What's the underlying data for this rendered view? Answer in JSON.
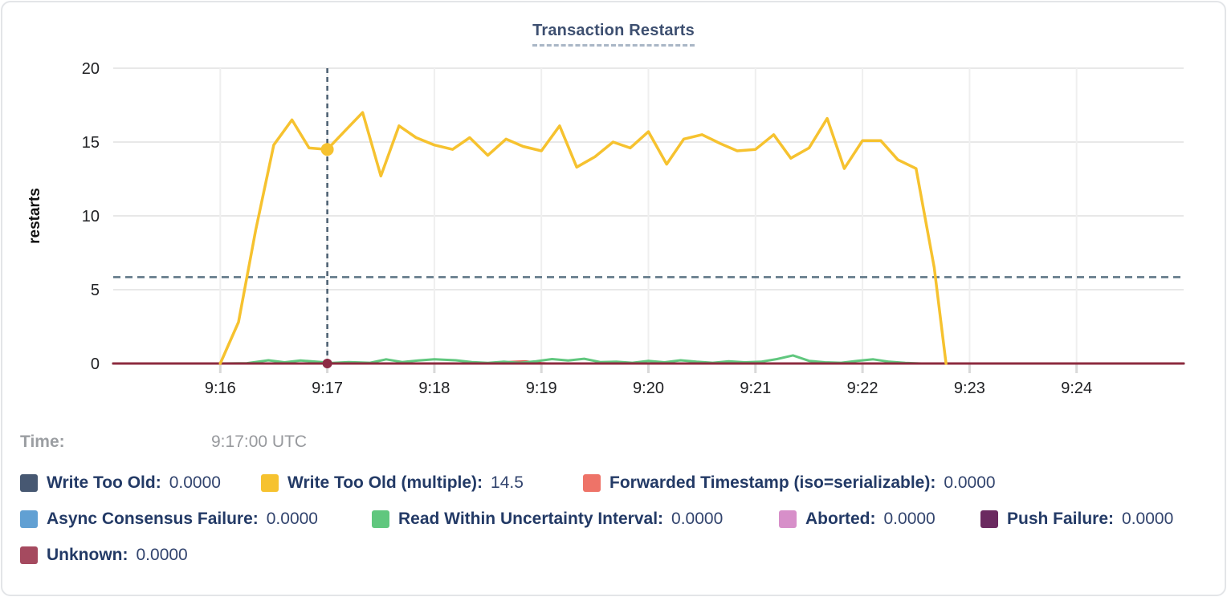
{
  "hover_readout": {
    "label": "Time:",
    "value": "9:17:00 UTC"
  },
  "chart_data": {
    "type": "line",
    "title": "Transaction Restarts",
    "ylabel": "restarts",
    "ylim": [
      0,
      20
    ],
    "yticks": [
      0,
      5,
      10,
      15,
      20
    ],
    "x_domain": [
      0,
      10
    ],
    "xticks": [
      {
        "m": 1,
        "label": "9:16"
      },
      {
        "m": 2,
        "label": "9:17"
      },
      {
        "m": 3,
        "label": "9:18"
      },
      {
        "m": 4,
        "label": "9:19"
      },
      {
        "m": 5,
        "label": "9:20"
      },
      {
        "m": 6,
        "label": "9:21"
      },
      {
        "m": 7,
        "label": "9:22"
      },
      {
        "m": 8,
        "label": "9:23"
      },
      {
        "m": 9,
        "label": "9:24"
      }
    ],
    "grid": true,
    "legend_position": "bottom",
    "dashed_hline_value": 5.85,
    "hover": {
      "x": 2,
      "time": "9:17:00 UTC",
      "points": [
        {
          "series": "Write Too Old (multiple)",
          "value": 14.5,
          "color": "#f6c22f",
          "r": 8
        },
        {
          "series": "Unknown",
          "value": 0,
          "color": "#8d2b44",
          "r": 6
        }
      ]
    },
    "z_order": [
      0,
      3,
      5,
      6,
      2,
      4,
      7,
      1
    ],
    "series": [
      {
        "name": "Write Too Old",
        "legend_value": "0.0000",
        "color": "#475872",
        "points": [
          [
            0,
            0
          ],
          [
            10,
            0
          ]
        ]
      },
      {
        "name": "Write Too Old (multiple)",
        "legend_value": "14.5",
        "color": "#f6c22f",
        "points": [
          [
            1,
            0
          ],
          [
            1.17,
            2.8
          ],
          [
            1.33,
            9
          ],
          [
            1.5,
            14.8
          ],
          [
            1.67,
            16.5
          ],
          [
            1.83,
            14.6
          ],
          [
            2,
            14.5
          ],
          [
            2.17,
            15.8
          ],
          [
            2.33,
            17
          ],
          [
            2.5,
            12.7
          ],
          [
            2.67,
            16.1
          ],
          [
            2.83,
            15.3
          ],
          [
            3,
            14.8
          ],
          [
            3.17,
            14.5
          ],
          [
            3.33,
            15.3
          ],
          [
            3.5,
            14.1
          ],
          [
            3.67,
            15.2
          ],
          [
            3.83,
            14.7
          ],
          [
            4,
            14.4
          ],
          [
            4.17,
            16.1
          ],
          [
            4.33,
            13.3
          ],
          [
            4.5,
            14
          ],
          [
            4.67,
            15
          ],
          [
            4.83,
            14.6
          ],
          [
            5,
            15.7
          ],
          [
            5.17,
            13.5
          ],
          [
            5.33,
            15.2
          ],
          [
            5.5,
            15.5
          ],
          [
            5.67,
            14.9
          ],
          [
            5.83,
            14.4
          ],
          [
            6,
            14.5
          ],
          [
            6.17,
            15.5
          ],
          [
            6.33,
            13.9
          ],
          [
            6.5,
            14.6
          ],
          [
            6.67,
            16.6
          ],
          [
            6.83,
            13.2
          ],
          [
            7,
            15.1
          ],
          [
            7.17,
            15.1
          ],
          [
            7.33,
            13.8
          ],
          [
            7.5,
            13.2
          ],
          [
            7.67,
            6.5
          ],
          [
            7.78,
            0
          ]
        ]
      },
      {
        "name": "Forwarded Timestamp (iso=serializable)",
        "legend_value": "0.0000",
        "color": "#ee7368",
        "line_color": "#dd5f55",
        "points": [
          [
            0,
            0
          ],
          [
            3.6,
            0
          ],
          [
            3.7,
            0.1
          ],
          [
            3.85,
            0.14
          ],
          [
            4.0,
            0.02
          ],
          [
            4.05,
            0
          ],
          [
            10,
            0
          ]
        ]
      },
      {
        "name": "Async Consensus Failure",
        "legend_value": "0.0000",
        "color": "#61a0d3",
        "points": [
          [
            0,
            0
          ],
          [
            10,
            0
          ]
        ]
      },
      {
        "name": "Read Within Uncertainty Interval",
        "legend_value": "0.0000",
        "color": "#60c77e",
        "points": [
          [
            0,
            0
          ],
          [
            1.0,
            0
          ],
          [
            1.25,
            0.02
          ],
          [
            1.45,
            0.22
          ],
          [
            1.6,
            0.08
          ],
          [
            1.75,
            0.2
          ],
          [
            1.9,
            0.12
          ],
          [
            2.05,
            0.04
          ],
          [
            2.2,
            0.1
          ],
          [
            2.4,
            0.05
          ],
          [
            2.55,
            0.28
          ],
          [
            2.7,
            0.1
          ],
          [
            2.85,
            0.2
          ],
          [
            3.0,
            0.28
          ],
          [
            3.2,
            0.22
          ],
          [
            3.35,
            0.1
          ],
          [
            3.5,
            0.04
          ],
          [
            3.65,
            0.12
          ],
          [
            3.8,
            0.05
          ],
          [
            3.95,
            0.15
          ],
          [
            4.1,
            0.3
          ],
          [
            4.25,
            0.2
          ],
          [
            4.4,
            0.32
          ],
          [
            4.55,
            0.1
          ],
          [
            4.7,
            0.12
          ],
          [
            4.85,
            0.05
          ],
          [
            5.0,
            0.18
          ],
          [
            5.15,
            0.08
          ],
          [
            5.3,
            0.22
          ],
          [
            5.45,
            0.12
          ],
          [
            5.6,
            0.05
          ],
          [
            5.75,
            0.15
          ],
          [
            5.9,
            0.08
          ],
          [
            6.05,
            0.12
          ],
          [
            6.2,
            0.3
          ],
          [
            6.35,
            0.55
          ],
          [
            6.5,
            0.18
          ],
          [
            6.65,
            0.08
          ],
          [
            6.8,
            0.05
          ],
          [
            6.95,
            0.18
          ],
          [
            7.1,
            0.28
          ],
          [
            7.25,
            0.12
          ],
          [
            7.4,
            0.04
          ],
          [
            7.55,
            0
          ],
          [
            10,
            0
          ]
        ]
      },
      {
        "name": "Aborted",
        "legend_value": "0.0000",
        "color": "#d78fc9",
        "points": [
          [
            0,
            0
          ],
          [
            10,
            0
          ]
        ]
      },
      {
        "name": "Push Failure",
        "legend_value": "0.0000",
        "color": "#6b2a60",
        "points": [
          [
            0,
            0
          ],
          [
            10,
            0
          ]
        ]
      },
      {
        "name": "Unknown",
        "legend_value": "0.0000",
        "color": "#a54a5f",
        "line_color": "#8d2b3f",
        "points": [
          [
            0,
            0
          ],
          [
            10,
            0
          ]
        ]
      }
    ],
    "style": {
      "grid_color_h": "#e8e8e8",
      "grid_color_v": "#efefef",
      "tick_stub_color": "#d9d9d9",
      "axis_text_color": "#202124",
      "crosshair_color": "#4a5e70",
      "hline_color": "#5b7384"
    }
  }
}
